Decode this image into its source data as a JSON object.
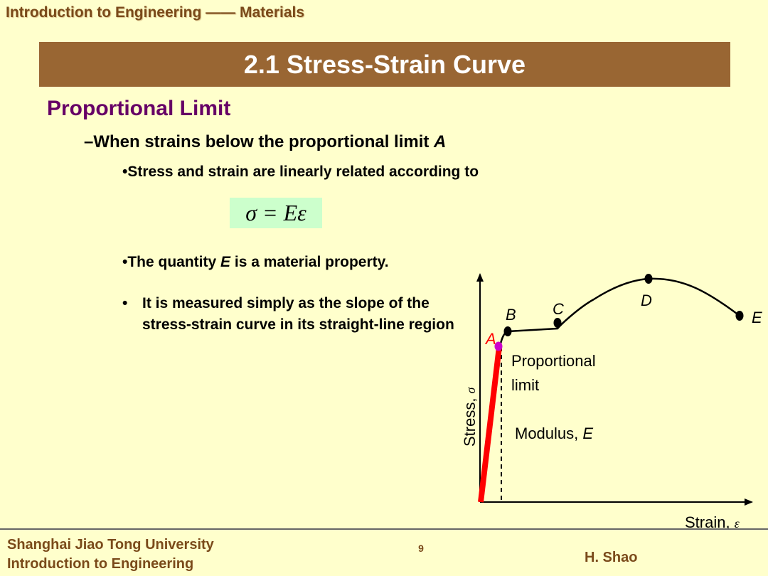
{
  "header": {
    "course_title": "Introduction to Engineering —— Materials"
  },
  "slide": {
    "title": "2.1 Stress-Strain Curve",
    "section_heading": "Proportional Limit",
    "level1_prefix": "–When strains below the proportional limit ",
    "level1_var": "A",
    "bullet_linear": "•Stress and strain are linearly related according to",
    "formula": "σ = Eε",
    "bullet_prop_prefix": "•The quantity ",
    "bullet_prop_var": "E",
    "bullet_prop_suffix": " is a material property.",
    "bullet_measured_marker": "•",
    "bullet_measured": "It is measured simply as the slope of the stress-strain curve in its straight-line region"
  },
  "diagram": {
    "points": {
      "a": "A",
      "b": "B",
      "c": "C",
      "d": "D",
      "e": "E"
    },
    "x_axis_label": "Strain,",
    "x_axis_symbol": "ε",
    "y_axis_label": "Stress,",
    "y_axis_symbol": "σ",
    "proportional_label_line1": "Proportional",
    "proportional_label_line2": "limit",
    "modulus_label_prefix": "Modulus, ",
    "modulus_label_var": "E",
    "colors": {
      "elastic_line": "#ff0000",
      "point_a": "#cc00cc",
      "curve": "#000000",
      "label_a": "#ff0000"
    }
  },
  "footer": {
    "university": "Shanghai Jiao Tong University",
    "course": "Introduction to Engineering",
    "page_number": "9",
    "author": "H. Shao"
  }
}
